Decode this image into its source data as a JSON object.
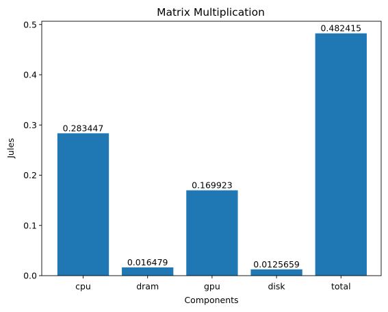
{
  "chart_data": {
    "type": "bar",
    "title": "Matrix Multiplication",
    "xlabel": "Components",
    "ylabel": "Jules",
    "categories": [
      "cpu",
      "dram",
      "gpu",
      "disk",
      "total"
    ],
    "values": [
      0.283447,
      0.016479,
      0.169923,
      0.0125659,
      0.482415
    ],
    "value_labels": [
      "0.283447",
      "0.016479",
      "0.169923",
      "0.0125659",
      "0.482415"
    ],
    "yticks": [
      0.0,
      0.1,
      0.2,
      0.3,
      0.4,
      0.5
    ],
    "ytick_labels": [
      "0.0",
      "0.1",
      "0.2",
      "0.3",
      "0.4",
      "0.5"
    ],
    "ylim": [
      0,
      0.5065
    ],
    "grid": false,
    "legend": false,
    "bar_color": "#1f77b4"
  }
}
